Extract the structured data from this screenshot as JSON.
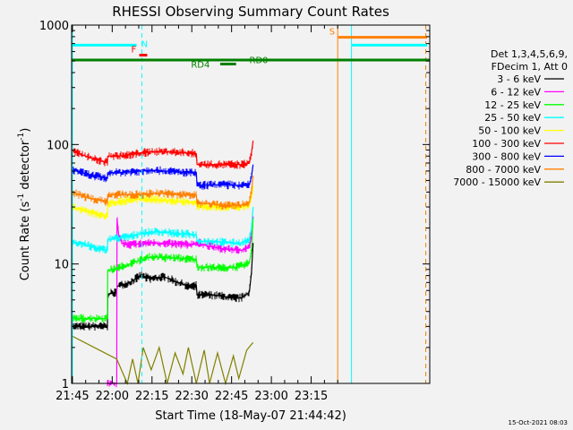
{
  "chart_data": {
    "type": "line",
    "title": "RHESSI Observing Summary Count Rates",
    "xlabel": "Start Time (18-May-07 21:44:42)",
    "ylabel_main": "Count Rate (s",
    "ylabel_sup1": "-1",
    "ylabel_mid": " detector",
    "ylabel_sup2": "-1",
    "ylabel_end": ")",
    "y_scale": "log",
    "ylim": [
      1,
      1000
    ],
    "xlim_min": [
      0,
      135
    ],
    "x_ticks": [
      {
        "min": 0.3,
        "label": "21:45"
      },
      {
        "min": 15.3,
        "label": "22:00"
      },
      {
        "min": 30.3,
        "label": "22:15"
      },
      {
        "min": 45.3,
        "label": "22:30"
      },
      {
        "min": 60.3,
        "label": "22:45"
      },
      {
        "min": 75.3,
        "label": "23:00"
      },
      {
        "min": 90.3,
        "label": "23:15"
      }
    ],
    "y_ticks": [
      {
        "value": 1,
        "label": "1"
      },
      {
        "value": 10,
        "label": "10"
      },
      {
        "value": 100,
        "label": "100"
      },
      {
        "value": 1000,
        "label": "1000"
      }
    ],
    "legend_header": [
      "Det 1,3,4,5,6,9,",
      "FDecim 1, Att 0"
    ],
    "legend_placement": "right",
    "series": [
      {
        "name": "3 - 6 keV",
        "color": "#000000",
        "x": [
          0,
          13.5,
          13.6,
          17,
          17.1,
          22,
          26,
          30,
          35,
          40,
          44,
          47,
          47.3,
          52,
          56,
          60,
          64,
          67,
          67.8,
          68.4
        ],
        "y": [
          3.0,
          3.0,
          5.6,
          5.8,
          6.5,
          7.0,
          8.0,
          7.5,
          7.8,
          7.0,
          6.5,
          6.6,
          5.5,
          5.5,
          5.4,
          5.2,
          5.2,
          5.8,
          8.5,
          15
        ]
      },
      {
        "name": "6 - 12 keV",
        "color": "#ff00ff",
        "x": [
          13.5,
          17,
          17.1,
          17.8,
          19,
          22,
          26,
          30,
          35,
          40,
          44,
          46,
          48,
          52,
          56,
          60,
          64,
          67,
          67.8,
          68.4
        ],
        "y": [
          1.0,
          1.0,
          24,
          17,
          15,
          14.5,
          14.8,
          15.0,
          14.8,
          14.7,
          14.5,
          14.8,
          15.0,
          14.0,
          13.5,
          13.2,
          13.0,
          14.0,
          17,
          25
        ]
      },
      {
        "name": "12 - 25 keV",
        "color": "#00ff00",
        "x": [
          0,
          13.5,
          13.6,
          17,
          22,
          26,
          30,
          35,
          40,
          44,
          47,
          47.3,
          52,
          56,
          60,
          64,
          67,
          67.8,
          68.4
        ],
        "y": [
          3.5,
          3.5,
          8.8,
          9.2,
          10.0,
          10.8,
          11.5,
          11.3,
          11.2,
          11.0,
          10.9,
          9.4,
          9.4,
          9.3,
          9.3,
          9.6,
          10.2,
          13,
          24
        ]
      },
      {
        "name": "25 - 50 keV",
        "color": "#00ffff",
        "x": [
          0,
          5,
          10,
          13.5,
          13.6,
          17,
          22,
          26,
          30,
          35,
          40,
          44,
          47,
          47.3,
          52,
          56,
          60,
          64,
          67,
          67.8,
          68.4
        ],
        "y": [
          15.5,
          14.5,
          13.5,
          13.0,
          16.0,
          16.5,
          17.0,
          18.0,
          18.5,
          18.5,
          18.0,
          17.8,
          17.5,
          15.5,
          15.5,
          15.3,
          15.0,
          15.0,
          16.0,
          20,
          30
        ]
      },
      {
        "name": "50 - 100 keV",
        "color": "#ffff00",
        "x": [
          0,
          5,
          10,
          13.5,
          13.6,
          17,
          22,
          26,
          30,
          35,
          40,
          44,
          47,
          47.3,
          52,
          56,
          60,
          64,
          67,
          67.8,
          68.4
        ],
        "y": [
          30,
          28,
          26,
          25,
          32,
          33,
          34,
          35,
          35,
          34,
          33.5,
          33,
          33,
          30,
          30,
          30,
          30,
          30,
          31,
          36,
          45
        ]
      },
      {
        "name": "100 - 300 keV",
        "color": "#ff0000",
        "x": [
          0,
          4,
          8,
          12,
          13.5,
          13.6,
          17,
          22,
          26,
          30,
          35,
          40,
          44,
          47,
          47.3,
          52,
          56,
          60,
          64,
          67,
          67.8,
          68.4
        ],
        "y": [
          88,
          82,
          76,
          72,
          70,
          80,
          80,
          82,
          85,
          87,
          87,
          86,
          85,
          84,
          68,
          68,
          68,
          68,
          68,
          70,
          85,
          108
        ]
      },
      {
        "name": "300 - 800 keV",
        "color": "#0000ff",
        "x": [
          0,
          4,
          8,
          12,
          13.5,
          13.6,
          17,
          22,
          26,
          30,
          35,
          40,
          44,
          47,
          47.3,
          52,
          56,
          60,
          64,
          67,
          67.8,
          68.4
        ],
        "y": [
          62,
          58,
          55,
          53,
          52,
          58,
          58,
          59,
          60,
          61,
          60,
          59,
          58,
          58,
          45,
          46,
          46,
          46,
          45,
          46,
          54,
          68
        ]
      },
      {
        "name": "800 - 7000 keV",
        "color": "#ff8000",
        "x": [
          0,
          4,
          8,
          12,
          13.5,
          13.6,
          17,
          22,
          26,
          30,
          35,
          40,
          44,
          47,
          47.3,
          52,
          56,
          60,
          64,
          67,
          67.8,
          68.4
        ],
        "y": [
          40,
          37,
          35,
          34,
          33,
          38,
          38,
          38,
          38,
          39,
          39,
          38,
          38,
          38,
          32,
          32,
          31,
          31,
          31,
          33,
          40,
          55
        ]
      },
      {
        "name": "7000 - 15000 keV",
        "color": "#808000",
        "x": [
          0,
          17,
          21,
          23,
          25,
          27,
          30,
          33,
          36,
          39,
          42,
          44,
          47,
          50,
          52,
          55,
          58,
          61,
          63,
          66,
          68.4
        ],
        "y": [
          2.5,
          1.6,
          1.0,
          1.6,
          1.0,
          2.0,
          1.3,
          2.0,
          1.0,
          1.8,
          1.2,
          2.0,
          1.0,
          1.9,
          1.0,
          1.8,
          1.0,
          1.7,
          1.1,
          1.9,
          2.2
        ]
      }
    ],
    "annotations": {
      "rate_bars": [
        {
          "label": "N",
          "color": "#00ffff",
          "x_start": 0.3,
          "x_end": 24.5,
          "y": 680
        },
        {
          "label": "F",
          "color": "#ff0000",
          "x_start": 25.5,
          "x_end": 28.5,
          "y": 560
        },
        {
          "label": "S",
          "color": "#ff8000",
          "x_start": 100.5,
          "x_end": 134,
          "y": 790
        },
        {
          "label": "",
          "color": "#00ffff",
          "x_start": 105.5,
          "x_end": 134,
          "y": 680
        }
      ],
      "green_line": {
        "color": "#008000",
        "y": 510
      },
      "rd_labels": [
        {
          "label": "RD4",
          "color": "#008000",
          "x": 45,
          "y": 440,
          "bar_x_start": 56,
          "bar_x_end": 62
        },
        {
          "label": "RD0",
          "color": "#008000",
          "x": 67,
          "y": 480,
          "bar_x_start": 0,
          "bar_x_end": 0
        }
      ],
      "vlines": [
        {
          "x": 0.3,
          "color": "#00ffff",
          "style": "solid"
        },
        {
          "x": 26.5,
          "color": "#00ffff",
          "style": "dashed"
        },
        {
          "x": 100.3,
          "color": "#ff8000",
          "style": "solid"
        },
        {
          "x": 105.5,
          "color": "#00ffff",
          "style": "solid"
        },
        {
          "x": 133.5,
          "color": "#00ffff",
          "style": "dashed"
        },
        {
          "x": 133.5,
          "color": "#ff8000",
          "style": "dashed"
        }
      ]
    },
    "grid": false
  },
  "timestamp": "15-Oct-2021 08:03"
}
